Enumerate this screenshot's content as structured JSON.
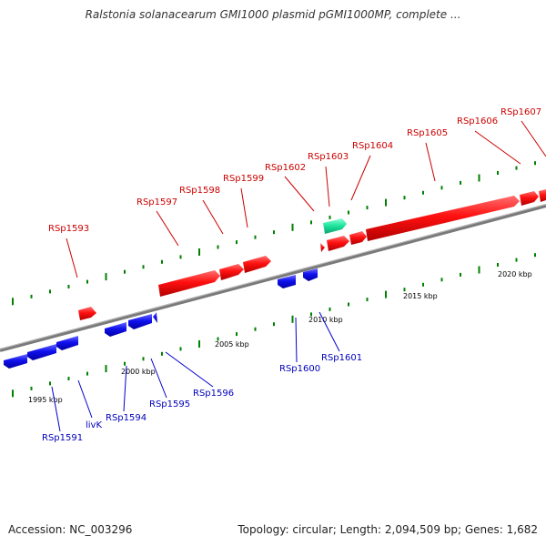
{
  "title": "Ralstonia solanacearum GMI1000 plasmid pGMI1000MP, complete ...",
  "footer": {
    "accession": "Accession: NC_003296",
    "summary": "Topology: circular; Length: 2,094,509 bp; Genes: 1,682"
  },
  "colors": {
    "forward_gene": "#ff0000",
    "reverse_gene": "#0000ee",
    "highlight_gene": "#19e39a",
    "backbone": "#808080",
    "tick": "#008000",
    "forward_label": "#cc0000",
    "reverse_label": "#0000bb"
  },
  "scale_labels": [
    "1995 kbp",
    "2000 kbp",
    "2005 kbp",
    "2010 kbp",
    "2015 kbp",
    "2020 kbp"
  ],
  "forward_labels": [
    "RSp1593",
    "RSp1597",
    "RSp1598",
    "RSp1599",
    "RSp1602",
    "RSp1603",
    "RSp1604",
    "RSp1605",
    "RSp1606",
    "RSp1607"
  ],
  "reverse_labels": [
    "RSp1591",
    "livK",
    "RSp1594",
    "RSp1595",
    "RSp1596",
    "RSp1600",
    "RSp1601"
  ]
}
